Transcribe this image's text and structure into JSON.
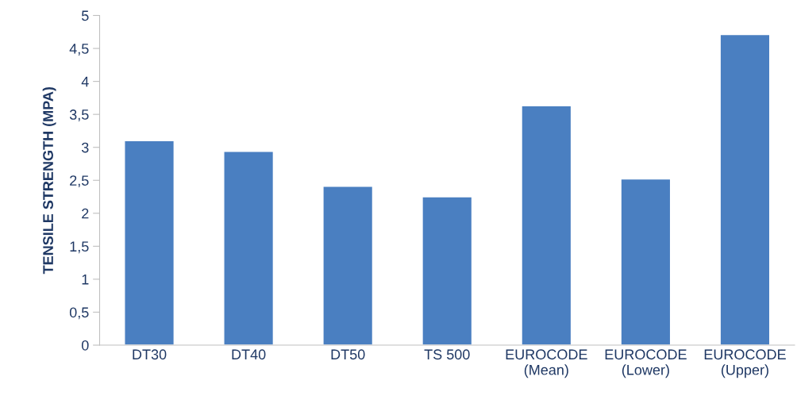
{
  "chart_data": {
    "type": "bar",
    "ylabel": "TENSILE STRENGTH (MPA)",
    "categories": [
      "DT30",
      "DT40",
      "DT50",
      "TS 500",
      "EUROCODE\n(Mean)",
      "EUROCODE\n(Lower)",
      "EUROCODE\n(Upper)"
    ],
    "values": [
      3.1,
      2.94,
      2.41,
      2.25,
      3.63,
      2.52,
      4.71
    ],
    "color": "#4a7fc1",
    "ylim": [
      0,
      5
    ],
    "yticks": [
      0,
      {
        "value": 0.5,
        "label": "0,5"
      },
      1,
      {
        "value": 1.5,
        "label": "1,5"
      },
      2,
      {
        "value": 2.5,
        "label": "2,5"
      },
      3,
      {
        "value": 3.5,
        "label": "3,5"
      },
      4,
      {
        "value": 4.5,
        "label": "4,5"
      },
      5
    ],
    "grid": false
  }
}
